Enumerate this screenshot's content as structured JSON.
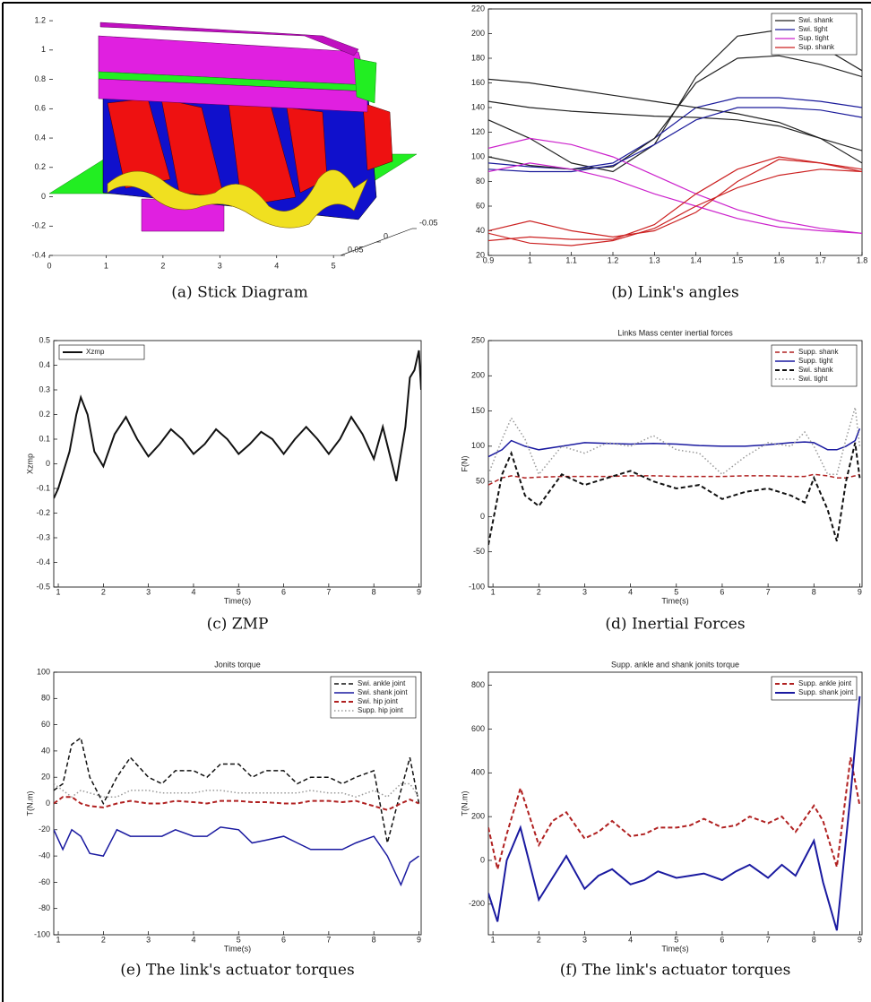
{
  "chart_data": [
    {
      "type": "3d",
      "caption": "(a) Stick Diagram",
      "xlim": [
        0,
        6.7
      ],
      "ylim": [
        -0.4,
        1.28
      ],
      "xticks": [
        0,
        1,
        2,
        3,
        4,
        5
      ],
      "yticks": [
        -0.4,
        -0.2,
        0,
        0.2,
        0.4,
        0.6,
        0.8,
        1,
        1.2
      ],
      "zticks": [
        0.05,
        0,
        -0.05
      ]
    },
    {
      "type": "line",
      "caption": "(b) Link's angles",
      "legend": "upper right",
      "xlim": [
        0.9,
        1.8
      ],
      "ylim": [
        20,
        220
      ],
      "xticks": [
        0.9,
        1,
        1.1,
        1.2,
        1.3,
        1.4,
        1.5,
        1.6,
        1.7,
        1.8
      ],
      "yticks": [
        20,
        40,
        60,
        80,
        100,
        120,
        140,
        160,
        180,
        200,
        220
      ],
      "x": [
        0.9,
        1.0,
        1.1,
        1.2,
        1.3,
        1.4,
        1.5,
        1.6,
        1.7,
        1.8
      ],
      "series": [
        {
          "name": "Swi. shank",
          "color": "#222222",
          "style": "solid",
          "width": 1.2,
          "values": [
            130,
            115,
            95,
            88,
            110,
            165,
            198,
            203,
            190,
            170
          ]
        },
        {
          "name": "Swi. tight",
          "color": "#1a1a9a",
          "style": "solid",
          "width": 1.2,
          "values": [
            95,
            92,
            90,
            95,
            115,
            140,
            148,
            148,
            145,
            140
          ]
        },
        {
          "name": "Sup. tight",
          "color": "#cc22cc",
          "style": "solid",
          "width": 1.2,
          "values": [
            107,
            115,
            110,
            100,
            85,
            70,
            57,
            48,
            42,
            38
          ]
        },
        {
          "name": "Sup. shank",
          "color": "#cc2222",
          "style": "solid",
          "width": 1.2,
          "values": [
            40,
            48,
            40,
            35,
            40,
            55,
            80,
            98,
            95,
            90
          ]
        },
        {
          "color": "#222222",
          "style": "solid",
          "width": 1.2,
          "values": [
            163,
            160,
            155,
            150,
            145,
            140,
            135,
            128,
            115,
            105
          ]
        },
        {
          "color": "#222222",
          "style": "solid",
          "width": 1.2,
          "values": [
            145,
            140,
            137,
            135,
            133,
            132,
            130,
            125,
            115,
            95
          ]
        },
        {
          "color": "#222222",
          "style": "solid",
          "width": 1.2,
          "values": [
            100,
            93,
            90,
            92,
            115,
            160,
            180,
            182,
            175,
            165
          ]
        },
        {
          "color": "#1a1a9a",
          "style": "solid",
          "width": 1.2,
          "values": [
            90,
            88,
            88,
            93,
            110,
            130,
            140,
            140,
            138,
            132
          ]
        },
        {
          "color": "#cc22cc",
          "style": "solid",
          "width": 1.2,
          "values": [
            88,
            95,
            90,
            82,
            70,
            60,
            50,
            43,
            40,
            38
          ]
        },
        {
          "color": "#cc2222",
          "style": "solid",
          "width": 1.2,
          "values": [
            32,
            35,
            33,
            33,
            45,
            70,
            90,
            100,
            95,
            88
          ]
        },
        {
          "color": "#cc2222",
          "style": "solid",
          "width": 1.2,
          "values": [
            38,
            30,
            28,
            32,
            42,
            60,
            75,
            85,
            90,
            88
          ]
        }
      ]
    },
    {
      "type": "line",
      "caption": "(c)  ZMP",
      "legend": "upper left",
      "xlabel": "Time(s)",
      "ylabel": "Xzmp",
      "xlim": [
        0.9,
        9.05
      ],
      "ylim": [
        -0.5,
        0.5
      ],
      "xticks": [
        1,
        2,
        3,
        4,
        5,
        6,
        7,
        8,
        9
      ],
      "yticks": [
        -0.5,
        -0.4,
        -0.3,
        -0.2,
        -0.1,
        0,
        0.1,
        0.2,
        0.3,
        0.4,
        0.5
      ],
      "x": [
        0.9,
        1.0,
        1.25,
        1.4,
        1.5,
        1.65,
        1.8,
        2.0,
        2.25,
        2.5,
        2.75,
        3.0,
        3.25,
        3.5,
        3.75,
        4.0,
        4.25,
        4.5,
        4.75,
        5.0,
        5.25,
        5.5,
        5.75,
        6.0,
        6.25,
        6.5,
        6.75,
        7.0,
        7.25,
        7.5,
        7.75,
        8.0,
        8.2,
        8.5,
        8.7,
        8.8,
        8.9,
        9.0,
        9.05
      ],
      "series": [
        {
          "name": "Xzmp",
          "color": "#111111",
          "style": "solid",
          "width": 2,
          "values": [
            -0.14,
            -0.1,
            0.05,
            0.2,
            0.27,
            0.2,
            0.05,
            -0.01,
            0.12,
            0.19,
            0.1,
            0.03,
            0.08,
            0.14,
            0.1,
            0.04,
            0.08,
            0.14,
            0.1,
            0.04,
            0.08,
            0.13,
            0.1,
            0.04,
            0.1,
            0.15,
            0.1,
            0.04,
            0.1,
            0.19,
            0.12,
            0.02,
            0.15,
            -0.07,
            0.15,
            0.35,
            0.38,
            0.46,
            0.3
          ]
        }
      ]
    },
    {
      "type": "line",
      "caption": "(d) Inertial Forces",
      "title": "Links Mass center inertial forces",
      "legend": "upper right",
      "xlabel": "Time(s)",
      "ylabel": "F(N)",
      "xlim": [
        0.9,
        9.05
      ],
      "ylim": [
        -100,
        250
      ],
      "xticks": [
        1,
        2,
        3,
        4,
        5,
        6,
        7,
        8,
        9
      ],
      "yticks": [
        -100,
        -50,
        0,
        50,
        100,
        150,
        200,
        250
      ],
      "x": [
        0.9,
        1.2,
        1.4,
        1.7,
        2.0,
        2.5,
        3.0,
        3.5,
        4.0,
        4.5,
        5.0,
        5.5,
        6.0,
        6.5,
        7.0,
        7.5,
        7.8,
        8.0,
        8.3,
        8.5,
        8.7,
        8.9,
        9.0
      ],
      "series": [
        {
          "name": "Supp. shank",
          "color": "#b02020",
          "style": "dashed",
          "width": 1.5,
          "values": [
            45,
            55,
            58,
            55,
            56,
            57,
            57,
            57,
            58,
            58,
            57,
            57,
            57,
            58,
            58,
            57,
            57,
            60,
            58,
            55,
            55,
            58,
            60
          ]
        },
        {
          "name": "Supp. tight",
          "color": "#1a1aa0",
          "style": "solid",
          "width": 1.5,
          "values": [
            85,
            95,
            108,
            100,
            95,
            100,
            105,
            104,
            103,
            104,
            103,
            101,
            100,
            100,
            102,
            105,
            106,
            105,
            95,
            95,
            100,
            108,
            125
          ]
        },
        {
          "name": "Swi. shank",
          "color": "#111111",
          "style": "dashed",
          "width": 2,
          "values": [
            -40,
            60,
            90,
            30,
            15,
            60,
            45,
            55,
            65,
            50,
            40,
            45,
            25,
            35,
            40,
            30,
            20,
            55,
            10,
            -35,
            50,
            105,
            55
          ]
        },
        {
          "name": "Swi. tight",
          "color": "#999999",
          "style": "dotted",
          "width": 1.5,
          "values": [
            60,
            110,
            140,
            110,
            60,
            100,
            90,
            105,
            100,
            115,
            95,
            90,
            60,
            85,
            105,
            100,
            120,
            100,
            60,
            60,
            110,
            155,
            100
          ]
        }
      ]
    },
    {
      "type": "line",
      "caption": "(e) The link's actuator torques",
      "title": "Jonits torque",
      "legend": "upper right",
      "xlabel": "Time(s)",
      "ylabel": "T(N.m)",
      "xlim": [
        0.9,
        9.05
      ],
      "ylim": [
        -100,
        100
      ],
      "xticks": [
        1,
        2,
        3,
        4,
        5,
        6,
        7,
        8,
        9
      ],
      "yticks": [
        -100,
        -80,
        -60,
        -40,
        -20,
        0,
        20,
        40,
        60,
        80,
        100
      ],
      "x": [
        0.9,
        1.1,
        1.3,
        1.5,
        1.7,
        2.0,
        2.3,
        2.6,
        3.0,
        3.3,
        3.6,
        4.0,
        4.3,
        4.6,
        5.0,
        5.3,
        5.6,
        6.0,
        6.3,
        6.6,
        7.0,
        7.3,
        7.6,
        8.0,
        8.3,
        8.6,
        8.8,
        9.0
      ],
      "series": [
        {
          "name": "Swi. ankle joint",
          "color": "#111111",
          "style": "dashed",
          "width": 1.5,
          "values": [
            10,
            15,
            45,
            50,
            20,
            0,
            20,
            35,
            20,
            15,
            25,
            25,
            20,
            30,
            30,
            20,
            25,
            25,
            15,
            20,
            20,
            15,
            20,
            25,
            -30,
            10,
            35,
            0
          ]
        },
        {
          "name": "Swi. shank joint",
          "color": "#1a1aa0",
          "style": "solid",
          "width": 1.5,
          "values": [
            -20,
            -35,
            -20,
            -25,
            -38,
            -40,
            -20,
            -25,
            -25,
            -25,
            -20,
            -25,
            -25,
            -18,
            -20,
            -30,
            -28,
            -25,
            -30,
            -35,
            -35,
            -35,
            -30,
            -25,
            -40,
            -62,
            -45,
            -40
          ]
        },
        {
          "name": "Swi. hip joint",
          "color": "#b02020",
          "style": "dashed",
          "width": 2,
          "values": [
            0,
            5,
            5,
            0,
            -2,
            -3,
            0,
            2,
            0,
            0,
            2,
            1,
            0,
            2,
            2,
            1,
            1,
            0,
            0,
            2,
            2,
            1,
            2,
            -2,
            -5,
            0,
            3,
            0
          ]
        },
        {
          "name": "Supp. hip joint",
          "color": "#999999",
          "style": "dotted",
          "width": 1.5,
          "values": [
            15,
            10,
            5,
            10,
            8,
            5,
            5,
            10,
            10,
            8,
            8,
            8,
            10,
            10,
            8,
            8,
            8,
            8,
            8,
            10,
            8,
            8,
            5,
            10,
            5,
            15,
            15,
            5
          ]
        }
      ]
    },
    {
      "type": "line",
      "caption": "(f) The link's actuator torques",
      "title": "Supp. ankle and shank jonits torque",
      "legend": "upper right",
      "xlabel": "Time(s)",
      "ylabel": "T(N.m)",
      "xlim": [
        0.9,
        9.05
      ],
      "ylim": [
        -340,
        860
      ],
      "xticks": [
        1,
        2,
        3,
        4,
        5,
        6,
        7,
        8,
        9
      ],
      "yticks": [
        -200,
        0,
        200,
        400,
        600,
        800
      ],
      "x": [
        0.9,
        1.1,
        1.3,
        1.6,
        2.0,
        2.3,
        2.6,
        3.0,
        3.3,
        3.6,
        4.0,
        4.3,
        4.6,
        5.0,
        5.3,
        5.6,
        6.0,
        6.3,
        6.6,
        7.0,
        7.3,
        7.6,
        8.0,
        8.2,
        8.5,
        8.8,
        9.0
      ],
      "series": [
        {
          "name": "Supp. ankle joint",
          "color": "#b02020",
          "style": "dashed",
          "width": 2,
          "values": [
            150,
            -40,
            120,
            330,
            70,
            180,
            220,
            100,
            130,
            180,
            110,
            120,
            150,
            150,
            160,
            190,
            150,
            160,
            200,
            170,
            200,
            130,
            250,
            180,
            -30,
            470,
            250
          ]
        },
        {
          "name": "Supp. shank joint",
          "color": "#1a1aa0",
          "style": "solid",
          "width": 2,
          "values": [
            -150,
            -280,
            0,
            150,
            -180,
            -80,
            20,
            -130,
            -70,
            -40,
            -110,
            -90,
            -50,
            -80,
            -70,
            -60,
            -90,
            -50,
            -20,
            -80,
            -20,
            -70,
            90,
            -100,
            -320,
            300,
            750
          ]
        }
      ]
    }
  ]
}
